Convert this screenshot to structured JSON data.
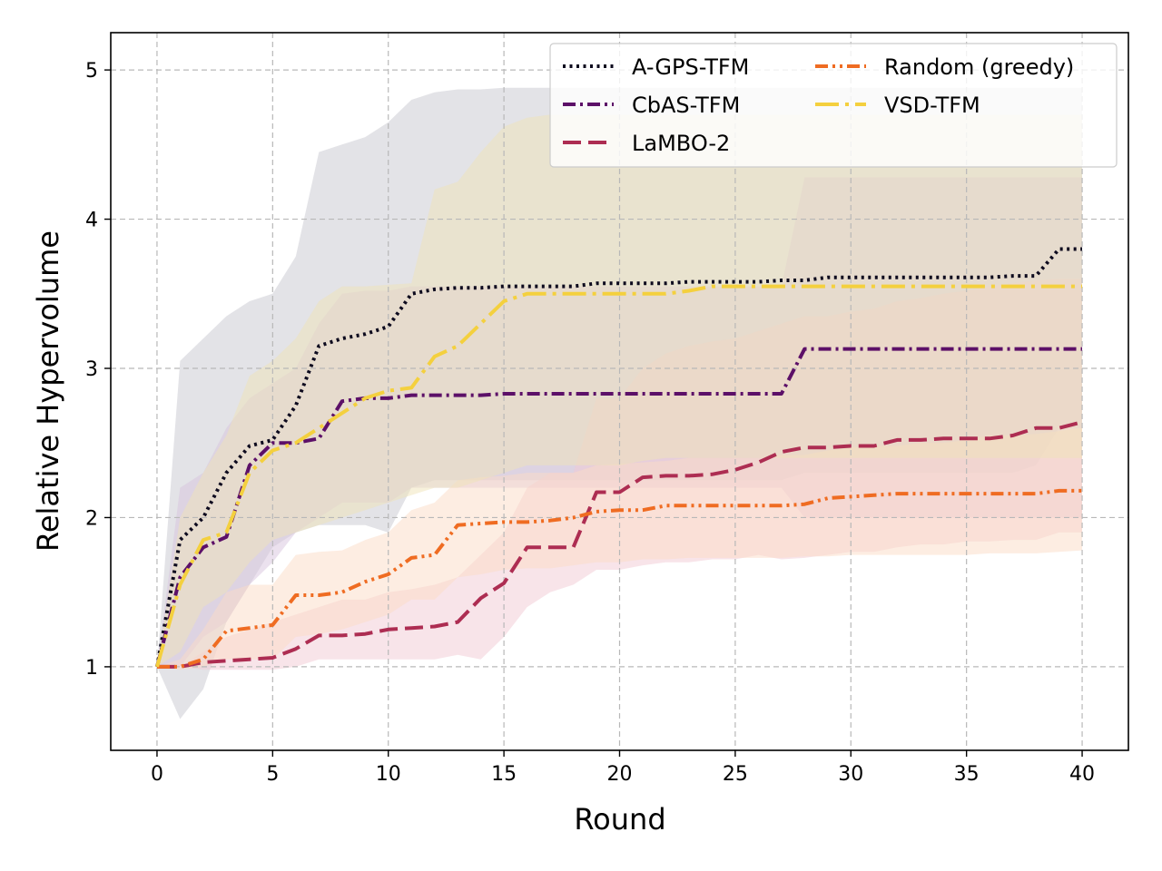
{
  "chart_data": {
    "type": "line",
    "xlabel": "Round",
    "ylabel": "Relative Hypervolume",
    "xlim": [
      -2,
      42
    ],
    "ylim": [
      0.44,
      5.25
    ],
    "xticks": [
      0,
      5,
      10,
      15,
      20,
      25,
      30,
      35,
      40
    ],
    "yticks": [
      1,
      2,
      3,
      4,
      5
    ],
    "grid": true,
    "legend_position": "top-right",
    "series": [
      {
        "name": "A-GPS-TFM",
        "color": "#0d0a1e",
        "dash": "dotted",
        "x": [
          0,
          1,
          2,
          3,
          4,
          5,
          6,
          7,
          8,
          9,
          10,
          11,
          12,
          13,
          14,
          15,
          16,
          17,
          18,
          19,
          20,
          21,
          22,
          23,
          24,
          25,
          26,
          27,
          28,
          29,
          30,
          31,
          32,
          33,
          34,
          35,
          36,
          37,
          38,
          39,
          40
        ],
        "values": [
          1.0,
          1.85,
          2.0,
          2.3,
          2.48,
          2.52,
          2.75,
          3.15,
          3.2,
          3.23,
          3.28,
          3.5,
          3.53,
          3.54,
          3.54,
          3.55,
          3.55,
          3.55,
          3.55,
          3.57,
          3.57,
          3.57,
          3.57,
          3.58,
          3.58,
          3.58,
          3.58,
          3.59,
          3.59,
          3.61,
          3.61,
          3.61,
          3.61,
          3.61,
          3.61,
          3.61,
          3.61,
          3.62,
          3.62,
          3.8,
          3.8
        ],
        "band_upper": [
          1.0,
          3.05,
          3.2,
          3.35,
          3.45,
          3.5,
          3.75,
          4.45,
          4.5,
          4.55,
          4.65,
          4.8,
          4.85,
          4.87,
          4.87,
          4.88,
          4.88,
          4.88,
          4.88,
          4.88,
          4.88,
          4.88,
          4.88,
          4.88,
          4.88,
          4.88,
          4.88,
          4.88,
          4.88,
          4.88,
          4.88,
          4.88,
          4.88,
          4.88,
          4.88,
          4.88,
          4.88,
          4.88,
          4.88,
          4.88,
          4.88
        ],
        "band_lower": [
          1.0,
          0.65,
          0.85,
          1.3,
          1.55,
          1.8,
          1.9,
          1.95,
          1.95,
          1.95,
          1.9,
          2.2,
          2.25,
          2.25,
          2.25,
          2.25,
          2.25,
          2.25,
          2.25,
          2.25,
          2.25,
          2.25,
          2.25,
          2.25,
          2.25,
          2.25,
          2.25,
          2.25,
          2.3,
          2.3,
          2.3,
          2.3,
          2.3,
          2.3,
          2.3,
          2.3,
          2.3,
          2.3,
          2.35,
          2.6,
          2.6
        ],
        "band_color": "#c8c8d0"
      },
      {
        "name": "CbAS-TFM",
        "color": "#5c1068",
        "dash": "dashdot",
        "x": [
          0,
          1,
          2,
          3,
          4,
          5,
          6,
          7,
          8,
          9,
          10,
          11,
          12,
          13,
          14,
          15,
          16,
          17,
          18,
          19,
          20,
          21,
          22,
          23,
          24,
          25,
          26,
          27,
          28,
          29,
          30,
          31,
          32,
          33,
          34,
          35,
          36,
          37,
          38,
          39,
          40
        ],
        "values": [
          1.0,
          1.6,
          1.8,
          1.87,
          2.35,
          2.5,
          2.5,
          2.53,
          2.78,
          2.8,
          2.8,
          2.82,
          2.82,
          2.82,
          2.82,
          2.83,
          2.83,
          2.83,
          2.83,
          2.83,
          2.83,
          2.83,
          2.83,
          2.83,
          2.83,
          2.83,
          2.83,
          2.83,
          3.13,
          3.13,
          3.13,
          3.13,
          3.13,
          3.13,
          3.13,
          3.13,
          3.13,
          3.13,
          3.13,
          3.13,
          3.13
        ],
        "band_upper": [
          1.0,
          2.2,
          2.3,
          2.6,
          2.8,
          2.9,
          3.0,
          3.3,
          3.5,
          3.52,
          3.52,
          3.55,
          3.55,
          3.55,
          3.55,
          3.55,
          3.55,
          3.55,
          3.55,
          3.55,
          3.55,
          3.55,
          3.55,
          3.55,
          3.55,
          3.55,
          3.55,
          3.55,
          4.28,
          4.28,
          4.28,
          4.28,
          4.28,
          4.28,
          4.28,
          4.28,
          4.28,
          4.28,
          4.28,
          4.28,
          4.28
        ],
        "band_lower": [
          1.0,
          1.0,
          1.2,
          1.3,
          1.55,
          1.7,
          1.9,
          2.0,
          2.1,
          2.1,
          2.1,
          2.2,
          2.2,
          2.2,
          2.2,
          2.2,
          2.2,
          2.2,
          2.2,
          2.2,
          2.2,
          2.2,
          2.2,
          2.2,
          2.2,
          2.2,
          2.2,
          2.2,
          2.0,
          2.0,
          2.0,
          2.0,
          2.0,
          2.0,
          2.0,
          2.0,
          2.0,
          2.0,
          2.0,
          2.0,
          2.0
        ],
        "band_color": "#d7c3de"
      },
      {
        "name": "LaMBO-2",
        "color": "#ad2d52",
        "dash": "dashed",
        "x": [
          0,
          1,
          2,
          3,
          4,
          5,
          6,
          7,
          8,
          9,
          10,
          11,
          12,
          13,
          14,
          15,
          16,
          17,
          18,
          19,
          20,
          21,
          22,
          23,
          24,
          25,
          26,
          27,
          28,
          29,
          30,
          31,
          32,
          33,
          34,
          35,
          36,
          37,
          38,
          39,
          40
        ],
        "values": [
          1.0,
          1.0,
          1.03,
          1.04,
          1.05,
          1.06,
          1.12,
          1.21,
          1.21,
          1.22,
          1.25,
          1.26,
          1.27,
          1.3,
          1.46,
          1.56,
          1.8,
          1.8,
          1.8,
          2.17,
          2.17,
          2.27,
          2.28,
          2.28,
          2.29,
          2.32,
          2.37,
          2.44,
          2.47,
          2.47,
          2.48,
          2.48,
          2.52,
          2.52,
          2.53,
          2.53,
          2.53,
          2.55,
          2.6,
          2.6,
          2.64
        ],
        "band_upper": [
          1.0,
          1.0,
          1.1,
          1.2,
          1.25,
          1.3,
          1.35,
          1.4,
          1.45,
          1.45,
          1.5,
          1.52,
          1.55,
          1.6,
          1.75,
          1.9,
          2.2,
          2.3,
          2.3,
          2.8,
          2.8,
          3.0,
          3.1,
          3.15,
          3.18,
          3.2,
          3.25,
          3.3,
          3.35,
          3.35,
          3.38,
          3.4,
          3.45,
          3.47,
          3.5,
          3.52,
          3.55,
          3.57,
          3.59,
          3.6,
          3.6
        ],
        "band_lower": [
          1.0,
          1.0,
          0.98,
          0.98,
          0.98,
          0.98,
          1.0,
          1.05,
          1.05,
          1.05,
          1.05,
          1.05,
          1.05,
          1.08,
          1.05,
          1.2,
          1.4,
          1.5,
          1.55,
          1.65,
          1.65,
          1.68,
          1.7,
          1.7,
          1.72,
          1.72,
          1.75,
          1.72,
          1.73,
          1.75,
          1.77,
          1.77,
          1.8,
          1.82,
          1.82,
          1.84,
          1.84,
          1.85,
          1.85,
          1.9,
          1.9
        ],
        "band_color": "#f1c9d3"
      },
      {
        "name": "Random (greedy)",
        "color": "#ef6c22",
        "dash": "dashdotdot",
        "x": [
          0,
          1,
          2,
          3,
          4,
          5,
          6,
          7,
          8,
          9,
          10,
          11,
          12,
          13,
          14,
          15,
          16,
          17,
          18,
          19,
          20,
          21,
          22,
          23,
          24,
          25,
          26,
          27,
          28,
          29,
          30,
          31,
          32,
          33,
          34,
          35,
          36,
          37,
          38,
          39,
          40
        ],
        "values": [
          1.0,
          1.0,
          1.05,
          1.24,
          1.26,
          1.28,
          1.48,
          1.48,
          1.5,
          1.57,
          1.62,
          1.73,
          1.75,
          1.95,
          1.96,
          1.97,
          1.97,
          1.98,
          2.0,
          2.04,
          2.05,
          2.05,
          2.08,
          2.08,
          2.08,
          2.08,
          2.08,
          2.08,
          2.09,
          2.13,
          2.14,
          2.15,
          2.16,
          2.16,
          2.16,
          2.16,
          2.16,
          2.16,
          2.16,
          2.18,
          2.18
        ],
        "band_upper": [
          1.0,
          1.05,
          1.25,
          1.5,
          1.55,
          1.55,
          1.75,
          1.77,
          1.78,
          1.85,
          1.9,
          2.05,
          2.1,
          2.25,
          2.27,
          2.28,
          2.3,
          2.3,
          2.3,
          2.35,
          2.36,
          2.37,
          2.38,
          2.4,
          2.4,
          2.4,
          2.4,
          2.42,
          2.42,
          2.45,
          2.47,
          2.48,
          2.48,
          2.5,
          2.5,
          2.52,
          2.55,
          2.55,
          2.56,
          2.58,
          2.6
        ],
        "band_lower": [
          1.0,
          0.98,
          1.0,
          1.05,
          1.05,
          1.05,
          1.2,
          1.22,
          1.25,
          1.3,
          1.35,
          1.45,
          1.45,
          1.6,
          1.62,
          1.65,
          1.66,
          1.66,
          1.68,
          1.7,
          1.7,
          1.72,
          1.72,
          1.73,
          1.73,
          1.73,
          1.73,
          1.73,
          1.74,
          1.74,
          1.75,
          1.75,
          1.75,
          1.75,
          1.75,
          1.75,
          1.76,
          1.76,
          1.76,
          1.77,
          1.78
        ],
        "band_color": "#fcdcc6"
      },
      {
        "name": "VSD-TFM",
        "color": "#f4d03e",
        "dash": "longdashdot",
        "x": [
          0,
          1,
          2,
          3,
          4,
          5,
          6,
          7,
          8,
          9,
          10,
          11,
          12,
          13,
          14,
          15,
          16,
          17,
          18,
          19,
          20,
          21,
          22,
          23,
          24,
          25,
          26,
          27,
          28,
          29,
          30,
          31,
          32,
          33,
          34,
          35,
          36,
          37,
          38,
          39,
          40
        ],
        "values": [
          1.0,
          1.55,
          1.85,
          1.9,
          2.3,
          2.45,
          2.5,
          2.6,
          2.7,
          2.8,
          2.85,
          2.87,
          3.08,
          3.15,
          3.3,
          3.45,
          3.5,
          3.5,
          3.5,
          3.5,
          3.5,
          3.5,
          3.5,
          3.52,
          3.55,
          3.55,
          3.55,
          3.55,
          3.55,
          3.55,
          3.55,
          3.55,
          3.55,
          3.55,
          3.55,
          3.55,
          3.55,
          3.55,
          3.55,
          3.55,
          3.55
        ],
        "band_upper": [
          1.0,
          2.0,
          2.3,
          2.55,
          2.95,
          3.05,
          3.2,
          3.45,
          3.55,
          3.55,
          3.56,
          3.57,
          4.2,
          4.25,
          4.45,
          4.62,
          4.68,
          4.7,
          4.7,
          4.7,
          4.7,
          4.7,
          4.7,
          4.7,
          4.7,
          4.7,
          4.7,
          4.7,
          4.7,
          4.7,
          4.7,
          4.7,
          4.7,
          4.7,
          4.7,
          4.7,
          4.7,
          4.7,
          4.7,
          4.7,
          4.7
        ],
        "band_lower": [
          1.0,
          1.1,
          1.4,
          1.5,
          1.7,
          1.85,
          1.9,
          1.95,
          2.0,
          2.05,
          2.1,
          2.15,
          2.2,
          2.2,
          2.25,
          2.3,
          2.35,
          2.35,
          2.35,
          2.35,
          2.35,
          2.38,
          2.4,
          2.4,
          2.4,
          2.4,
          2.4,
          2.4,
          2.4,
          2.4,
          2.4,
          2.4,
          2.4,
          2.4,
          2.4,
          2.4,
          2.4,
          2.4,
          2.4,
          2.4,
          2.4
        ],
        "band_color": "#efe3b8"
      }
    ]
  }
}
